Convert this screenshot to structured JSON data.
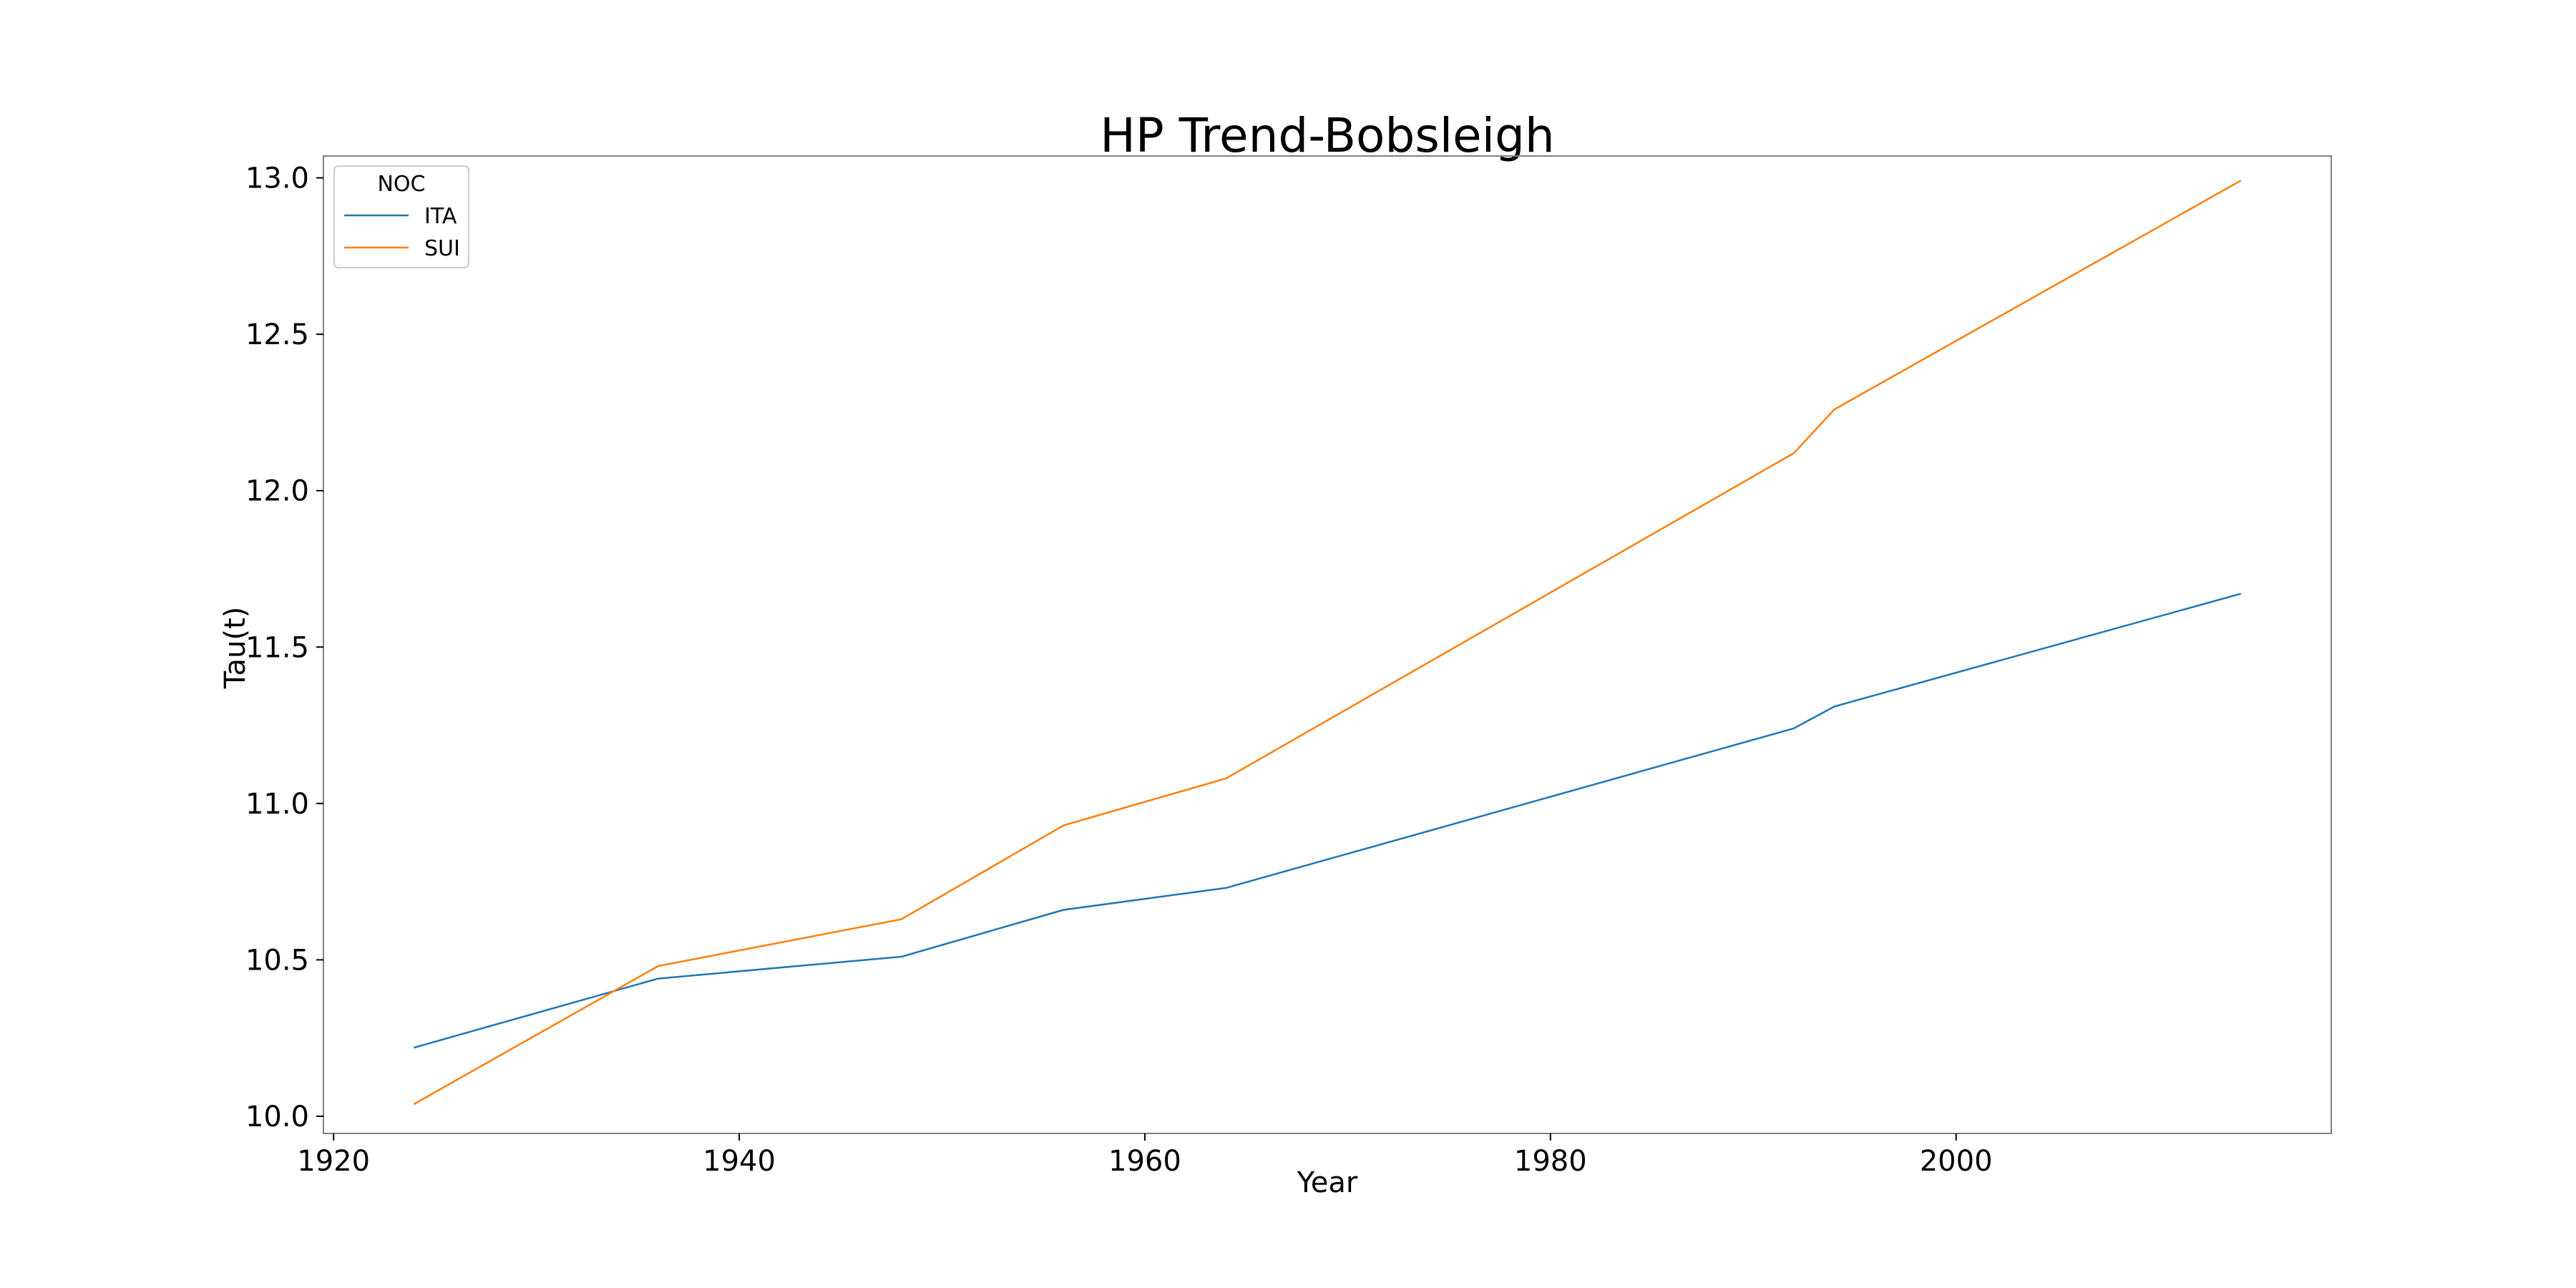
{
  "chart_data": {
    "type": "line",
    "title": "HP Trend-Bobsleigh",
    "xlabel": "Year",
    "ylabel": "Tau(t)",
    "xlim": [
      1919.5,
      2018.5
    ],
    "ylim": [
      9.945,
      13.07
    ],
    "x_ticks": [
      1920,
      1940,
      1960,
      1980,
      2000
    ],
    "y_ticks": [
      10.0,
      10.5,
      11.0,
      11.5,
      12.0,
      12.5,
      13.0
    ],
    "x_tick_labels": [
      "1920",
      "1940",
      "1960",
      "1980",
      "2000"
    ],
    "y_tick_labels": [
      "10.0",
      "10.5",
      "11.0",
      "11.5",
      "12.0",
      "12.5",
      "13.0"
    ],
    "grid": false,
    "legend": {
      "title": "NOC",
      "position": "top-left"
    },
    "x": [
      1924,
      1936,
      1948,
      1956,
      1964,
      1992,
      1994,
      2014
    ],
    "series": [
      {
        "name": "ITA",
        "color": "#1f77b4",
        "values": [
          10.22,
          10.44,
          10.51,
          10.66,
          10.73,
          11.24,
          11.31,
          11.67
        ]
      },
      {
        "name": "SUI",
        "color": "#ff7f0e",
        "values": [
          10.04,
          10.48,
          10.63,
          10.93,
          11.08,
          12.12,
          12.26,
          12.99
        ]
      }
    ]
  }
}
